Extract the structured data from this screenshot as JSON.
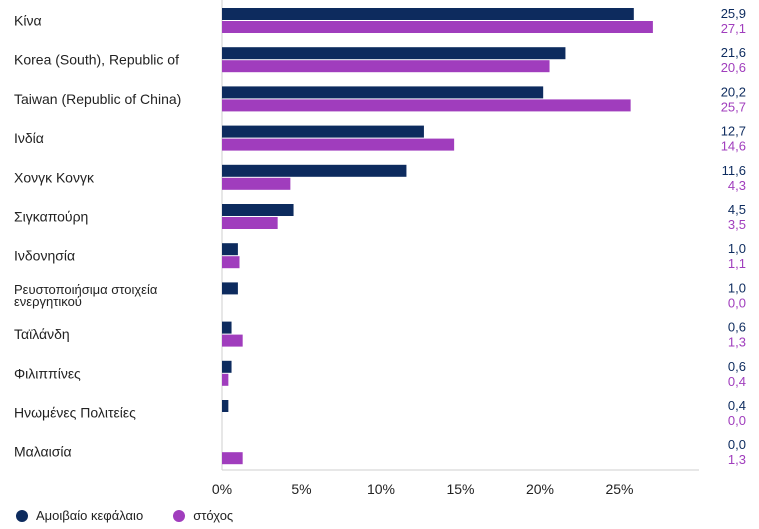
{
  "chart_data": {
    "type": "bar",
    "orientation": "horizontal",
    "categories": [
      "Κίνα",
      "Korea (South), Republic of",
      "Taiwan (Republic of China)",
      "Ινδία",
      "Χονγκ Κονγκ",
      "Σιγκαπούρη",
      "Ινδονησία",
      "Ρευστοποιήσιμα στοιχεία ενεργητικού",
      "Ταϊλάνδη",
      "Φιλιππίνες",
      "Ηνωμένες Πολιτείες",
      "Μαλαισία"
    ],
    "series": [
      {
        "name": "Αμοιβαίο κεφάλαιο",
        "color": "#0d2b5e",
        "values": [
          25.9,
          21.6,
          20.2,
          12.7,
          11.6,
          4.5,
          1.0,
          1.0,
          0.6,
          0.6,
          0.4,
          0.0
        ],
        "labels": [
          "25,9",
          "21,6",
          "20,2",
          "12,7",
          "11,6",
          "4,5",
          "1,0",
          "1,0",
          "0,6",
          "0,6",
          "0,4",
          "0,0"
        ]
      },
      {
        "name": "στόχος",
        "color": "#a03dbd",
        "values": [
          27.1,
          20.6,
          25.7,
          14.6,
          4.3,
          3.5,
          1.1,
          0.0,
          1.3,
          0.4,
          0.0,
          1.3
        ],
        "labels": [
          "27,1",
          "20,6",
          "25,7",
          "14,6",
          "4,3",
          "3,5",
          "1,1",
          "0,0",
          "1,3",
          "0,4",
          "0,0",
          "1,3"
        ]
      }
    ],
    "x_ticks": [
      "0%",
      "5%",
      "10%",
      "15%",
      "20%",
      "25%"
    ],
    "x_tick_values": [
      0,
      5,
      10,
      15,
      20,
      25
    ],
    "xlim": [
      0,
      30
    ],
    "legend_position": "bottom-left"
  }
}
